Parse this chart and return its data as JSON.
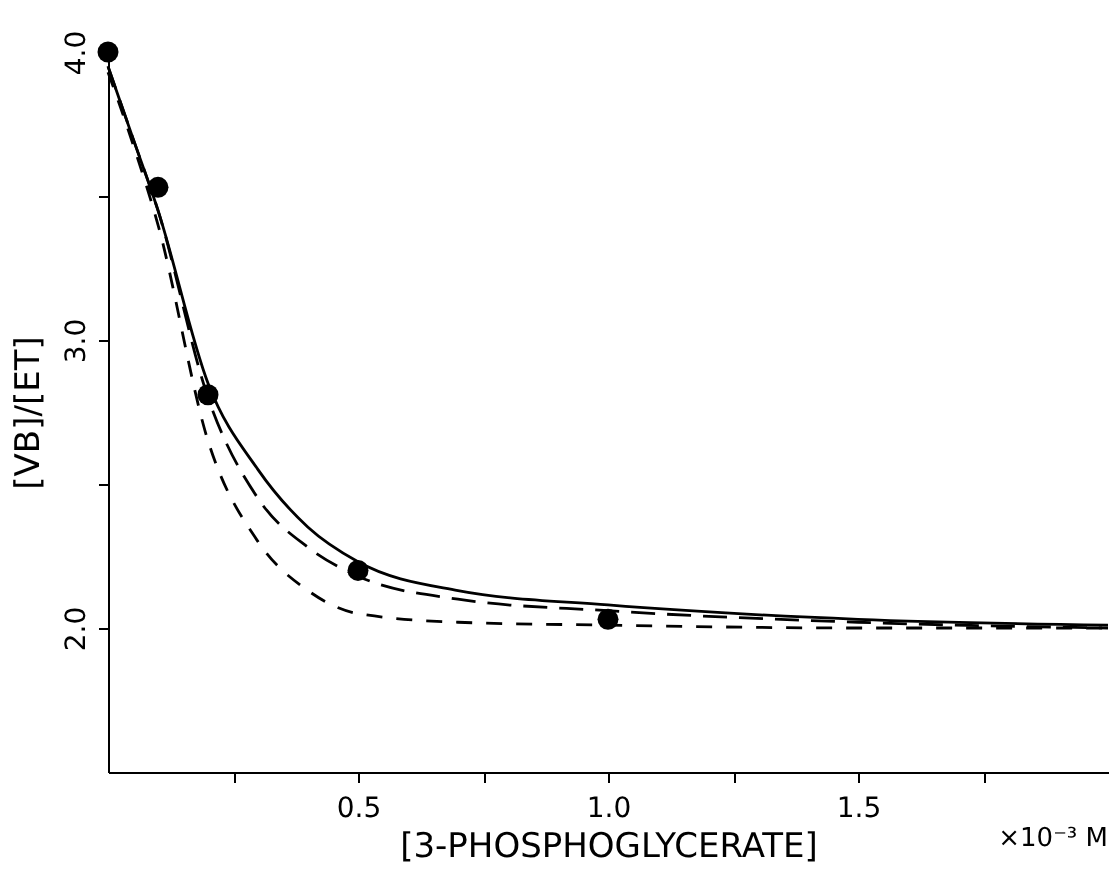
{
  "chart_data": {
    "type": "line",
    "xlabel": "[3-PHOSPHOGLYCERATE]",
    "ylabel": "[VB]/[ET]",
    "xlim": [
      0,
      2.0
    ],
    "ylim": [
      1.5,
      4.0
    ],
    "xticks": [
      {
        "value": 0.25,
        "label": null
      },
      0.5,
      {
        "value": 0.75,
        "label": null
      },
      {
        "value": 1.0,
        "label": "1.0"
      },
      {
        "value": 1.25,
        "label": null
      },
      1.5,
      {
        "value": 1.75,
        "label": null
      }
    ],
    "annotations": [
      "×10⁻³ M"
    ],
    "yticks": [
      {
        "value": 2.0,
        "label": "2.0"
      },
      {
        "value": 2.5,
        "label": null
      },
      {
        "value": 3.0,
        "label": "3.0"
      },
      {
        "value": 3.5,
        "label": null
      },
      {
        "value": 4.0,
        "label": "4.0"
      }
    ],
    "grid": false,
    "series": [
      {
        "line_style": "solid",
        "marker": "none",
        "color": "#000000",
        "x": [
          0,
          0.05,
          0.1,
          0.2,
          0.3,
          0.4,
          0.5,
          0.7,
          1.0,
          1.5,
          2.0
        ],
        "values": [
          3.95,
          3.7,
          3.45,
          2.85,
          2.55,
          2.35,
          2.23,
          2.13,
          2.08,
          2.03,
          2.01
        ]
      },
      {
        "line_style": "dashed",
        "marker": "none",
        "color": "#000000",
        "x": [
          0,
          0.05,
          0.1,
          0.2,
          0.3,
          0.4,
          0.5,
          0.7,
          1.0,
          1.5,
          2.0
        ],
        "values": [
          3.95,
          3.7,
          3.45,
          2.8,
          2.45,
          2.28,
          2.18,
          2.1,
          2.06,
          2.02,
          2.0
        ]
      },
      {
        "line_style": "dashed",
        "marker": "none",
        "color": "#000000",
        "x": [
          0,
          0.05,
          0.1,
          0.2,
          0.3,
          0.4,
          0.5,
          0.7,
          1.0,
          1.5,
          2.0
        ],
        "values": [
          3.93,
          3.68,
          3.4,
          2.65,
          2.3,
          2.13,
          2.05,
          2.02,
          2.01,
          2.0,
          2.0
        ]
      },
      {
        "type": "scatter",
        "marker": "circle",
        "color": "#000000",
        "x": [
          0,
          0.1,
          0.2,
          0.5,
          1.0
        ],
        "values": [
          4.0,
          3.53,
          2.81,
          2.2,
          2.03
        ]
      }
    ]
  }
}
